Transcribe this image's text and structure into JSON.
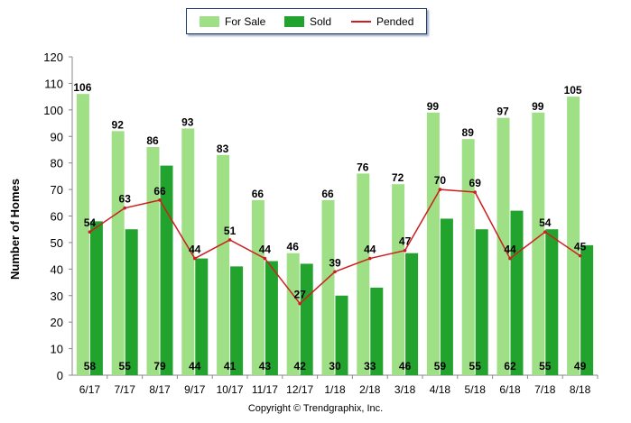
{
  "legend": {
    "for_sale": "For Sale",
    "sold": "Sold",
    "pended": "Pended"
  },
  "copyright": "Copyright © Trendgraphix, Inc.",
  "colors": {
    "for_sale": "#9fdf86",
    "sold": "#22a32e",
    "pended": "#cc1f1f",
    "axis": "#888888"
  },
  "chart_data": {
    "type": "bar",
    "title": "",
    "xlabel": "",
    "ylabel": "Number of Homes",
    "ylim": [
      0,
      120
    ],
    "yticks": [
      0,
      10,
      20,
      30,
      40,
      50,
      60,
      70,
      80,
      90,
      100,
      110,
      120
    ],
    "grid": false,
    "legend_position": "top-center",
    "categories": [
      "6/17",
      "7/17",
      "8/17",
      "9/17",
      "10/17",
      "11/17",
      "12/17",
      "1/18",
      "2/18",
      "3/18",
      "4/18",
      "5/18",
      "6/18",
      "7/18",
      "8/18"
    ],
    "series": [
      {
        "name": "For Sale",
        "type": "bar",
        "values": [
          106,
          92,
          86,
          93,
          83,
          66,
          46,
          66,
          76,
          72,
          99,
          89,
          97,
          99,
          105
        ]
      },
      {
        "name": "Sold",
        "type": "bar",
        "values": [
          58,
          55,
          79,
          44,
          41,
          43,
          42,
          30,
          33,
          46,
          59,
          55,
          62,
          55,
          49
        ]
      },
      {
        "name": "Pended",
        "type": "line",
        "values": [
          54,
          63,
          66,
          44,
          51,
          44,
          27,
          39,
          44,
          47,
          70,
          69,
          44,
          54,
          45
        ]
      }
    ]
  }
}
